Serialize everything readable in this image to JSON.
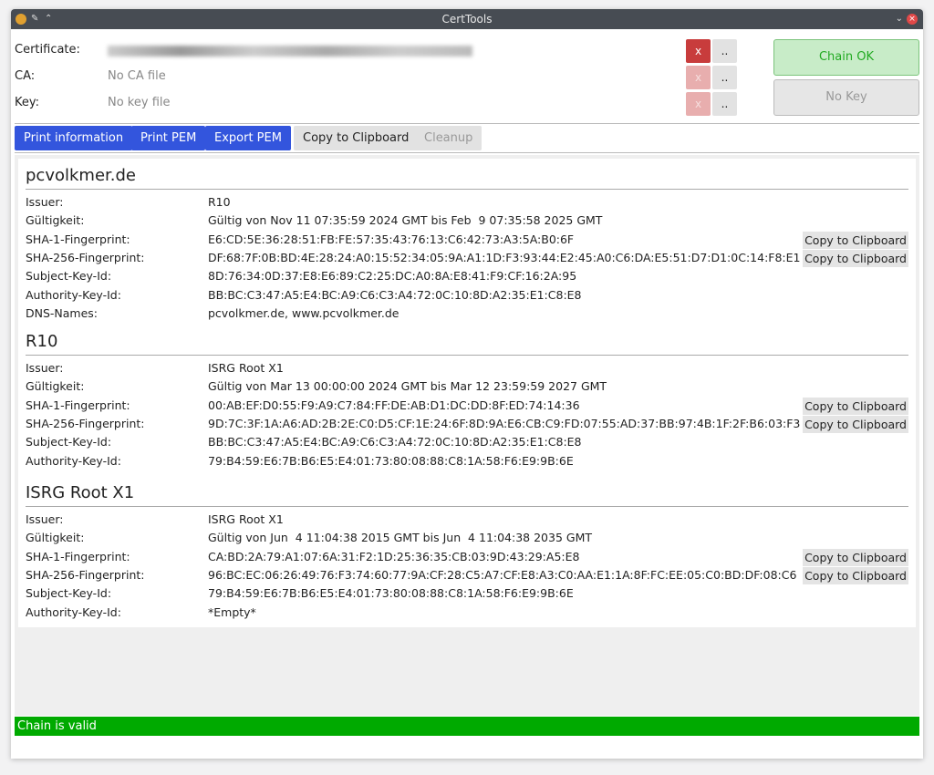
{
  "window": {
    "title": "CertTools"
  },
  "inputs": {
    "certificate": {
      "label": "Certificate:",
      "value": ""
    },
    "ca": {
      "label": "CA:",
      "value": "No CA file"
    },
    "key": {
      "label": "Key:",
      "value": "No key file"
    },
    "remove_label": "x",
    "browse_label": ".."
  },
  "status_buttons": {
    "chain": "Chain OK",
    "key": "No Key"
  },
  "toolbar": {
    "print_information": "Print information",
    "print_pem": "Print PEM",
    "export_pem": "Export PEM",
    "copy": "Copy to Clipboard",
    "cleanup": "Cleanup"
  },
  "copy_label": "Copy to Clipboard",
  "certs": [
    {
      "title": "pcvolkmer.de",
      "rows": [
        {
          "k": "Issuer:",
          "v": "R10"
        },
        {
          "k": "Gültigkeit:",
          "v": "Gültig von Nov 11 07:35:59 2024 GMT bis Feb  9 07:35:58 2025 GMT"
        },
        {
          "k": "SHA-1-Fingerprint:",
          "v": "E6:CD:5E:36:28:51:FB:FE:57:35:43:76:13:C6:42:73:A3:5A:B0:6F",
          "copy": true
        },
        {
          "k": "SHA-256-Fingerprint:",
          "v": "DF:68:7F:0B:BD:4E:28:24:A0:15:52:34:05:9A:A1:1D:F3:93:44:E2:45:A0:C6:DA:E5:51:D7:D1:0C:14:F8:E1",
          "copy": true
        },
        {
          "k": "Subject-Key-Id:",
          "v": "8D:76:34:0D:37:E8:E6:89:C2:25:DC:A0:8A:E8:41:F9:CF:16:2A:95"
        },
        {
          "k": "Authority-Key-Id:",
          "v": "BB:BC:C3:47:A5:E4:BC:A9:C6:C3:A4:72:0C:10:8D:A2:35:E1:C8:E8"
        },
        {
          "k": "DNS-Names:",
          "v": "pcvolkmer.de, www.pcvolkmer.de"
        }
      ]
    },
    {
      "title": "R10",
      "rows": [
        {
          "k": "Issuer:",
          "v": "ISRG Root X1"
        },
        {
          "k": "Gültigkeit:",
          "v": "Gültig von Mar 13 00:00:00 2024 GMT bis Mar 12 23:59:59 2027 GMT"
        },
        {
          "k": "SHA-1-Fingerprint:",
          "v": "00:AB:EF:D0:55:F9:A9:C7:84:FF:DE:AB:D1:DC:DD:8F:ED:74:14:36",
          "copy": true
        },
        {
          "k": "SHA-256-Fingerprint:",
          "v": "9D:7C:3F:1A:A6:AD:2B:2E:C0:D5:CF:1E:24:6F:8D:9A:E6:CB:C9:FD:07:55:AD:37:BB:97:4B:1F:2F:B6:03:F3",
          "copy": true
        },
        {
          "k": "Subject-Key-Id:",
          "v": "BB:BC:C3:47:A5:E4:BC:A9:C6:C3:A4:72:0C:10:8D:A2:35:E1:C8:E8"
        },
        {
          "k": "Authority-Key-Id:",
          "v": "79:B4:59:E6:7B:B6:E5:E4:01:73:80:08:88:C8:1A:58:F6:E9:9B:6E"
        }
      ]
    },
    {
      "title": "ISRG Root X1",
      "rows": [
        {
          "k": "Issuer:",
          "v": "ISRG Root X1"
        },
        {
          "k": "Gültigkeit:",
          "v": "Gültig von Jun  4 11:04:38 2015 GMT bis Jun  4 11:04:38 2035 GMT"
        },
        {
          "k": "SHA-1-Fingerprint:",
          "v": "CA:BD:2A:79:A1:07:6A:31:F2:1D:25:36:35:CB:03:9D:43:29:A5:E8",
          "copy": true
        },
        {
          "k": "SHA-256-Fingerprint:",
          "v": "96:BC:EC:06:26:49:76:F3:74:60:77:9A:CF:28:C5:A7:CF:E8:A3:C0:AA:E1:1A:8F:FC:EE:05:C0:BD:DF:08:C6",
          "copy": true
        },
        {
          "k": "Subject-Key-Id:",
          "v": "79:B4:59:E6:7B:B6:E5:E4:01:73:80:08:88:C8:1A:58:F6:E9:9B:6E"
        },
        {
          "k": "Authority-Key-Id:",
          "v": "*Empty*"
        }
      ]
    }
  ],
  "status": {
    "text": "Chain is valid",
    "color": "#00aa00"
  }
}
